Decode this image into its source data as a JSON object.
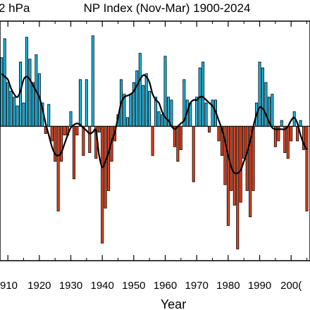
{
  "chart_data": {
    "type": "bar",
    "title": "NP Index (Nov-Mar) 1900-2024",
    "unit_text": "2 hPa",
    "xlabel": "Year",
    "ylabel": "",
    "x_tick_labels": [
      "910",
      "1920",
      "1930",
      "1940",
      "1950",
      "1960",
      "1970",
      "1980",
      "1990",
      "200("
    ],
    "xlim": [
      1907.5,
      2006
    ],
    "ylim": [
      -4.6,
      3.6
    ],
    "colors": {
      "positive": "#1ab9e6",
      "negative": "#e8401a",
      "line": "#000000"
    },
    "x": [
      1908,
      1909,
      1910,
      1911,
      1912,
      1913,
      1914,
      1915,
      1916,
      1917,
      1918,
      1919,
      1920,
      1921,
      1922,
      1923,
      1924,
      1925,
      1926,
      1927,
      1928,
      1929,
      1930,
      1931,
      1932,
      1933,
      1934,
      1935,
      1936,
      1937,
      1938,
      1939,
      1940,
      1941,
      1942,
      1943,
      1944,
      1945,
      1946,
      1947,
      1948,
      1949,
      1950,
      1951,
      1952,
      1953,
      1954,
      1955,
      1956,
      1957,
      1958,
      1959,
      1960,
      1961,
      1962,
      1963,
      1964,
      1965,
      1966,
      1967,
      1968,
      1969,
      1970,
      1971,
      1972,
      1973,
      1974,
      1975,
      1976,
      1977,
      1978,
      1979,
      1980,
      1981,
      1982,
      1983,
      1984,
      1985,
      1986,
      1987,
      1988,
      1989,
      1990,
      1991,
      1992,
      1993,
      1994,
      1995,
      1996,
      1997,
      1998,
      1999,
      2000,
      2001,
      2002,
      2003,
      2004,
      2005
    ],
    "values": [
      2.35,
      3.0,
      1.5,
      1.2,
      1.0,
      0.7,
      2.2,
      0.8,
      3.05,
      2.3,
      1.5,
      2.45,
      1.8,
      0.8,
      -0.25,
      0.75,
      -0.5,
      -1.2,
      -2.9,
      -1.2,
      -0.3,
      -0.3,
      0.5,
      -1.8,
      -0.3,
      1.6,
      -1.0,
      1.6,
      -0.9,
      3.1,
      -1.1,
      -0.2,
      -4.0,
      -2.8,
      -2.2,
      -1.2,
      -0.5,
      0.4,
      1.6,
      1.1,
      0.3,
      1.1,
      1.5,
      1.9,
      2.5,
      1.4,
      1.8,
      1.2,
      -1.0,
      1.0,
      0.5,
      0.4,
      2.4,
      1.0,
      0.9,
      -0.7,
      -1.2,
      -0.8,
      1.6,
      0.9,
      0.8,
      -1.9,
      1.0,
      2.0,
      2.2,
      0.8,
      -0.2,
      0.9,
      0.9,
      -0.5,
      -1.0,
      -2.0,
      -3.4,
      -2.2,
      -2.7,
      -4.2,
      -2.6,
      -1.1,
      -2.2,
      -3.1,
      -2.2,
      0.8,
      2.2,
      2.0,
      1.5,
      1.0,
      1.1,
      -0.7,
      -0.5,
      0.2,
      -0.9,
      -1.1,
      -0.5,
      0.5,
      -0.5,
      0.2,
      -0.8,
      -2.9
    ],
    "smooth_line": [
      1.8,
      1.7,
      1.6,
      1.3,
      1.1,
      1.0,
      1.2,
      1.6,
      1.7,
      1.6,
      1.4,
      1.2,
      1.0,
      0.6,
      0.1,
      -0.3,
      -0.7,
      -0.95,
      -1.0,
      -0.9,
      -0.6,
      -0.3,
      -0.05,
      0.05,
      0.1,
      0.05,
      -0.05,
      -0.15,
      -0.25,
      -0.2,
      -0.15,
      -1.0,
      -1.4,
      -1.2,
      -0.9,
      -0.5,
      -0.2,
      0.3,
      0.8,
      1.0,
      1.05,
      1.1,
      1.2,
      1.4,
      1.6,
      1.75,
      1.7,
      1.5,
      1.1,
      0.9,
      0.8,
      0.5,
      0.3,
      0.2,
      0.0,
      -0.1,
      0.0,
      0.1,
      0.2,
      0.5,
      0.8,
      0.9,
      0.9,
      1.0,
      1.0,
      0.9,
      0.8,
      0.7,
      0.5,
      0.2,
      -0.1,
      -0.5,
      -1.0,
      -1.4,
      -1.6,
      -1.6,
      -1.5,
      -1.2,
      -0.9,
      -0.5,
      0.0,
      0.4,
      0.65,
      0.6,
      0.4,
      0.15,
      -0.05,
      -0.1,
      -0.1,
      -0.1,
      -0.1,
      0.0,
      0.2,
      0.3,
      0.1,
      -0.3,
      -0.6,
      -0.8
    ]
  }
}
